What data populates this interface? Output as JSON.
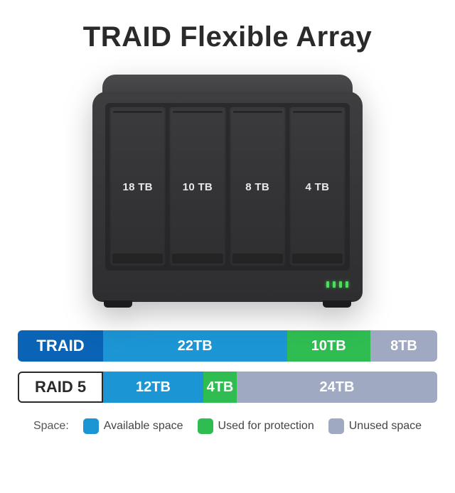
{
  "title": "TRAID Flexible Array",
  "device": {
    "bays": [
      "18 TB",
      "10 TB",
      "8 TB",
      "4 TB"
    ],
    "led_count": 4,
    "led_color": "#4ade5a",
    "body_color_top": "#4a4a4c",
    "body_color": "#343436"
  },
  "colors": {
    "available": "#1c95d4",
    "protection": "#2fbd52",
    "unused": "#9fa9c2",
    "label_primary": "#0a63b5",
    "text_dark": "#2a2a2a"
  },
  "bars": [
    {
      "label": "TRAID",
      "label_style": "filled",
      "label_bg": "#0a63b5",
      "total": 40,
      "segments": [
        {
          "value": 22,
          "text": "22TB",
          "color": "#1c95d4"
        },
        {
          "value": 10,
          "text": "10TB",
          "color": "#2fbd52"
        },
        {
          "value": 8,
          "text": "8TB",
          "color": "#9fa9c2"
        }
      ]
    },
    {
      "label": "RAID 5",
      "label_style": "outline",
      "label_bg": "#ffffff",
      "total": 40,
      "segments": [
        {
          "value": 12,
          "text": "12TB",
          "color": "#1c95d4"
        },
        {
          "value": 4,
          "text": "4TB",
          "color": "#2fbd52"
        },
        {
          "value": 24,
          "text": "24TB",
          "color": "#9fa9c2"
        }
      ]
    }
  ],
  "legend": {
    "title": "Space:",
    "items": [
      {
        "label": "Available space",
        "color": "#1c95d4"
      },
      {
        "label": "Used for protection",
        "color": "#2fbd52"
      },
      {
        "label": "Unused space",
        "color": "#9fa9c2"
      }
    ]
  }
}
